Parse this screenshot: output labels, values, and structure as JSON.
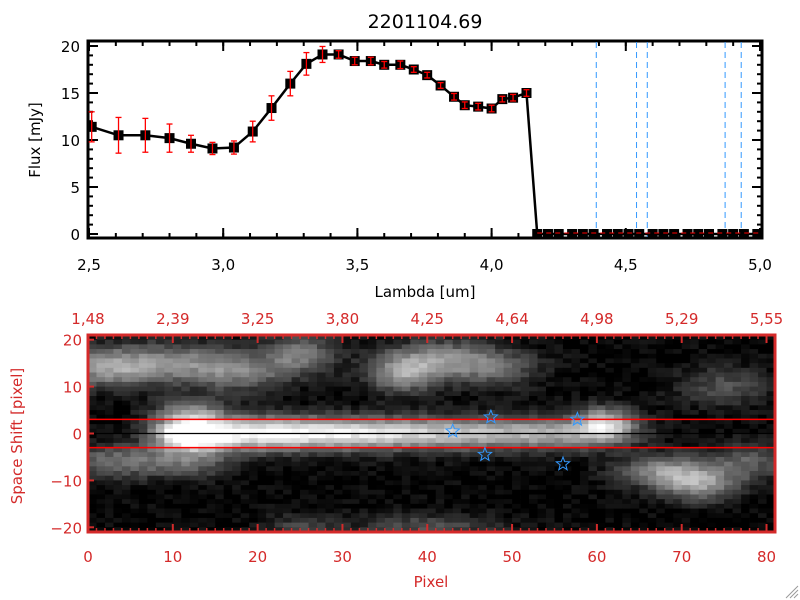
{
  "chart_data": [
    {
      "type": "line",
      "title": "2201104.69",
      "xlabel": "Lambda [um]",
      "ylabel": "Flux [mJy]",
      "xlim": [
        2.5,
        5.0
      ],
      "ylim": [
        0,
        20
      ],
      "xticks": [
        "2.5",
        "3.0",
        "3.5",
        "4.0",
        "4.5",
        "5.0"
      ],
      "yticks": [
        "0",
        "5",
        "10",
        "15",
        "20"
      ],
      "grid": false,
      "colors": {
        "line": "#000000",
        "errorbar": "#ff0000",
        "zero_line": "#ff0000",
        "vlines": "#3399ff"
      },
      "series": [
        {
          "x": [
            2.51,
            2.61,
            2.71,
            2.8,
            2.88,
            2.96,
            3.04,
            3.11,
            3.18,
            3.25,
            3.31,
            3.37,
            3.43,
            3.49,
            3.55,
            3.6,
            3.66,
            3.71,
            3.76,
            3.81,
            3.86,
            3.9,
            3.95,
            4.0,
            4.04,
            4.08,
            4.13
          ],
          "y": [
            11.4,
            10.5,
            10.5,
            10.2,
            9.6,
            9.1,
            9.2,
            10.9,
            13.4,
            16.0,
            18.1,
            19.1,
            19.1,
            18.4,
            18.4,
            18.0,
            18.0,
            17.5,
            16.9,
            15.8,
            14.6,
            13.7,
            13.55,
            13.35,
            14.35,
            14.5,
            15.0
          ],
          "yerr": [
            1.6,
            1.9,
            1.8,
            1.5,
            0.9,
            0.65,
            0.7,
            1.1,
            1.3,
            1.3,
            1.2,
            0.85,
            0.4,
            0.4,
            0.4,
            0.35,
            0.4,
            0.3,
            0.3,
            0.3,
            0.35,
            0.35,
            0.35,
            0.35,
            0.3,
            0.35,
            0.35
          ]
        },
        {
          "x": [
            4.17,
            4.21,
            4.25,
            4.3,
            4.34,
            4.38,
            4.43,
            4.47,
            4.51,
            4.55,
            4.6,
            4.64,
            4.68,
            4.73,
            4.77,
            4.81,
            4.86,
            4.9,
            4.94,
            4.99
          ],
          "y": [
            0,
            0,
            0,
            0,
            0,
            0,
            0,
            0,
            0,
            0,
            0,
            0,
            0,
            0,
            0,
            0,
            0,
            0,
            0,
            0
          ]
        }
      ],
      "vertical_dashed_lines_x": [
        4.39,
        4.54,
        4.58,
        4.87,
        4.93
      ]
    },
    {
      "type": "heatmap",
      "xlabel": "Pixel",
      "ylabel": "Space Shift [pixel]",
      "xlim": [
        0,
        81
      ],
      "ylim": [
        -21,
        21
      ],
      "xticks": [
        "0",
        "10",
        "20",
        "30",
        "40",
        "50",
        "60",
        "70",
        "80"
      ],
      "yticks": [
        "-20",
        "-10",
        "0",
        "10",
        "20"
      ],
      "top_xticks": [
        "1.48",
        "2.39",
        "3.25",
        "3.80",
        "4.25",
        "4.64",
        "4.98",
        "5.29",
        "5.55"
      ],
      "colormap": "grayscale",
      "colors": {
        "axes": "#d42a2a",
        "aperture_lines": "#ff0000",
        "center_line": "#000000",
        "stars": "#3399ff"
      },
      "aperture_lines_y": [
        3,
        -3
      ],
      "center_line_y": 0,
      "star_markers": [
        {
          "x": 43,
          "y": 0.5
        },
        {
          "x": 47.5,
          "y": 3.5
        },
        {
          "x": 46.8,
          "y": -4.5
        },
        {
          "x": 57.7,
          "y": 3
        },
        {
          "x": 56,
          "y": -6.5
        }
      ],
      "sources": [
        {
          "x": 12,
          "y": 0,
          "amp": 1.0,
          "sx": 3,
          "sy": 2.5
        },
        {
          "x": 20,
          "y": 0,
          "amp": 0.7,
          "sx": 5,
          "sy": 2.5
        },
        {
          "x": 30,
          "y": 0,
          "amp": 0.6,
          "sx": 6,
          "sy": 2.5
        },
        {
          "x": 42,
          "y": 0,
          "amp": 0.55,
          "sx": 7,
          "sy": 2.5
        },
        {
          "x": 55,
          "y": 0,
          "amp": 0.45,
          "sx": 6,
          "sy": 2.5
        },
        {
          "x": 61,
          "y": 2,
          "amp": 0.6,
          "sx": 2.5,
          "sy": 2.5
        },
        {
          "x": 12,
          "y": 5,
          "amp": 0.35,
          "sx": 3,
          "sy": 2
        },
        {
          "x": 2,
          "y": 14,
          "amp": 0.45,
          "sx": 4,
          "sy": 3
        },
        {
          "x": 10,
          "y": 15,
          "amp": 0.4,
          "sx": 5,
          "sy": 3
        },
        {
          "x": 18,
          "y": 13,
          "amp": 0.35,
          "sx": 4,
          "sy": 3
        },
        {
          "x": 25,
          "y": 17,
          "amp": 0.4,
          "sx": 3,
          "sy": 3
        },
        {
          "x": 37,
          "y": 13,
          "amp": 0.5,
          "sx": 3,
          "sy": 3
        },
        {
          "x": 42,
          "y": 16,
          "amp": 0.35,
          "sx": 4,
          "sy": 3
        },
        {
          "x": 48,
          "y": 14,
          "amp": 0.3,
          "sx": 4,
          "sy": 3
        },
        {
          "x": 75,
          "y": 10,
          "amp": 0.25,
          "sx": 4,
          "sy": 3
        },
        {
          "x": 3,
          "y": -6,
          "amp": 0.35,
          "sx": 4,
          "sy": 2.5
        },
        {
          "x": 12,
          "y": -6,
          "amp": 0.3,
          "sx": 4,
          "sy": 2.5
        },
        {
          "x": 68,
          "y": -8,
          "amp": 0.45,
          "sx": 4,
          "sy": 2.5
        },
        {
          "x": 72,
          "y": -11,
          "amp": 0.45,
          "sx": 3,
          "sy": 2.5
        },
        {
          "x": 78,
          "y": -6,
          "amp": 0.3,
          "sx": 3,
          "sy": 3
        },
        {
          "x": 40,
          "y": -20,
          "amp": 0.25,
          "sx": 6,
          "sy": 2
        },
        {
          "x": 25,
          "y": -20,
          "amp": 0.2,
          "sx": 3,
          "sy": 2
        }
      ]
    }
  ]
}
